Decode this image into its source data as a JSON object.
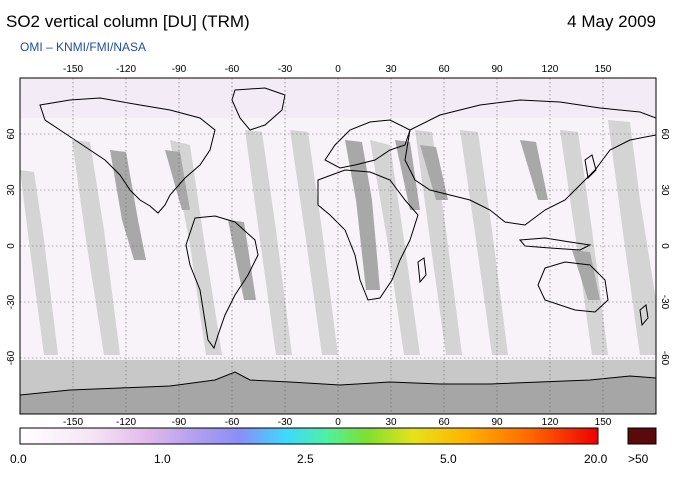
{
  "header": {
    "title": "SO2 vertical column [DU] (TRM)",
    "date": "4 May 2009",
    "credit": "OMI  –  KNMI/FMI/NASA"
  },
  "map": {
    "projection": "equirectangular",
    "lon_ticks_top": [
      "-150",
      "-120",
      "-90",
      "-60",
      "-30",
      "0",
      "30",
      "60",
      "90",
      "120",
      "150"
    ],
    "lon_ticks_bottom": [
      "-150",
      "-120",
      "-90",
      "-60",
      "-30",
      "0",
      "30",
      "60",
      "90",
      "120",
      "150"
    ],
    "lat_ticks": [
      "60",
      "30",
      "0",
      "-30",
      "-60"
    ],
    "colors": {
      "swath_light": "#d4d4d4",
      "swath_dark": "#a8a8a8",
      "polar_fill": "#c8c8c8",
      "antarctica": "#a6a6a6",
      "background": "#f7f3f9"
    }
  },
  "colorbar": {
    "labels": [
      "0.0",
      "1.0",
      "2.5",
      "5.0",
      "20.0",
      ">50"
    ],
    "max_color": "#5a0a0a"
  }
}
